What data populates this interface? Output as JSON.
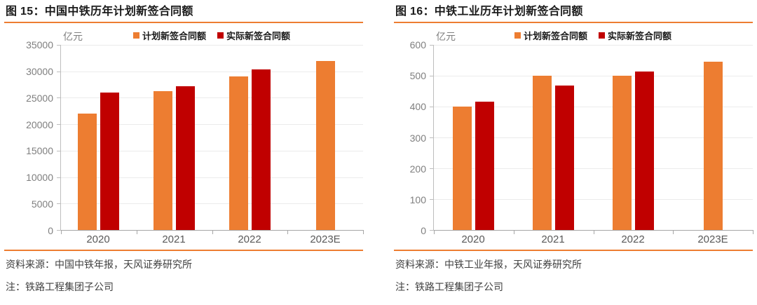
{
  "colors": {
    "plan": "#ED7D31",
    "actual": "#C00000",
    "rule": "#ED7D31",
    "grid": "#EBEBEB",
    "axis": "#A6A6A6",
    "tick_label": "#7F7F7F",
    "title_text": "#1A1A1A",
    "footer_text": "#3F3F3F"
  },
  "panels": [
    {
      "title": "图 15：中国中铁历年计划新签合同额",
      "unit": "亿元",
      "source": "资料来源：中国中铁年报，天风证券研究所",
      "note": "注：铁路工程集团子公司"
    },
    {
      "title": "图 16：中铁工业历年计划新签合同额",
      "unit": "亿元",
      "source": "资料来源：中铁工业年报，天风证券研究所",
      "note": "注：铁路工程集团子公司"
    }
  ],
  "chart_data": [
    {
      "type": "bar",
      "title": "图 15：中国中铁历年计划新签合同额",
      "categories": [
        "2020",
        "2021",
        "2022",
        "2023E"
      ],
      "series": [
        {
          "name": "计划新签合同额",
          "key": "plan",
          "color": "#ED7D31",
          "values": [
            22000,
            26300,
            29100,
            31900
          ]
        },
        {
          "name": "实际新签合同额",
          "key": "actual",
          "color": "#C00000",
          "values": [
            26000,
            27200,
            30300,
            null
          ]
        }
      ],
      "xlabel": "",
      "ylabel": "亿元",
      "ylim": [
        0,
        35000
      ],
      "ytick_step": 5000,
      "yticks": [
        0,
        5000,
        10000,
        15000,
        20000,
        25000,
        30000,
        35000
      ],
      "grid": true,
      "legend_position": "top"
    },
    {
      "type": "bar",
      "title": "图 16：中铁工业历年计划新签合同额",
      "categories": [
        "2020",
        "2021",
        "2022",
        "2023E"
      ],
      "series": [
        {
          "name": "计划新签合同额",
          "key": "plan",
          "color": "#ED7D31",
          "values": [
            400,
            500,
            500,
            545
          ]
        },
        {
          "name": "实际新签合同额",
          "key": "actual",
          "color": "#C00000",
          "values": [
            417,
            468,
            514,
            null
          ]
        }
      ],
      "xlabel": "",
      "ylabel": "亿元",
      "ylim": [
        0,
        600
      ],
      "ytick_step": 100,
      "yticks": [
        0,
        100,
        200,
        300,
        400,
        500,
        600
      ],
      "grid": true,
      "legend_position": "top"
    }
  ]
}
